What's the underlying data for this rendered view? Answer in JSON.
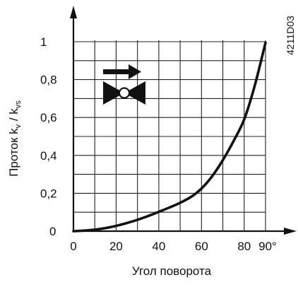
{
  "chart_data": {
    "type": "line",
    "title": "",
    "xlabel": "Угол поворота",
    "ylabel": {
      "main": "Проток k",
      "sub1": "v",
      "sep": " / k",
      "sub2": "vs"
    },
    "xlim": [
      0,
      90
    ],
    "ylim": [
      0,
      1
    ],
    "grid": true,
    "x_ticks": [
      {
        "value": 0,
        "label": "0"
      },
      {
        "value": 20,
        "label": "20"
      },
      {
        "value": 40,
        "label": "40"
      },
      {
        "value": 60,
        "label": "60"
      },
      {
        "value": 80,
        "label": "80"
      },
      {
        "value": 90,
        "label": "90°"
      }
    ],
    "y_ticks": [
      {
        "value": 0,
        "label": "0"
      },
      {
        "value": 0.2,
        "label": "0,2"
      },
      {
        "value": 0.4,
        "label": "0,4"
      },
      {
        "value": 0.6,
        "label": "0,6"
      },
      {
        "value": 0.8,
        "label": "0,8"
      },
      {
        "value": 1,
        "label": "1"
      }
    ],
    "series": [
      {
        "x": [
          0,
          5,
          10,
          15,
          20,
          25,
          30,
          35,
          40,
          45,
          50,
          55,
          60,
          65,
          70,
          75,
          80,
          85,
          90
        ],
        "y": [
          0,
          0.003,
          0.008,
          0.016,
          0.028,
          0.043,
          0.06,
          0.08,
          0.102,
          0.125,
          0.15,
          0.18,
          0.225,
          0.29,
          0.375,
          0.475,
          0.59,
          0.77,
          0.995
        ]
      }
    ],
    "annotations": [
      {
        "text": "4211D03",
        "position": "top-right",
        "orientation": "vertical"
      }
    ],
    "icon": "valve-with-flow-arrow-icon",
    "line_color": "#111111"
  }
}
